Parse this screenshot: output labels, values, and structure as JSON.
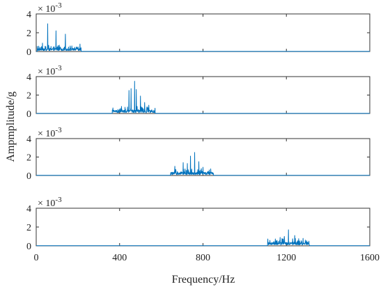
{
  "chart_data": [
    {
      "type": "line",
      "subplot": 1,
      "x_range": [
        0,
        1600
      ],
      "ylim": [
        0,
        4
      ],
      "y_ticks": [
        0,
        2,
        4
      ],
      "y_scale_label": "× 10^-3",
      "x_start": 5,
      "x_end": 215,
      "baseline": 0.3,
      "noise": 0.35,
      "peaks": [
        [
          55,
          2.95
        ],
        [
          95,
          2.2
        ],
        [
          140,
          1.85
        ],
        [
          30,
          0.9
        ],
        [
          210,
          0.8
        ]
      ]
    },
    {
      "type": "line",
      "subplot": 2,
      "x_range": [
        0,
        1600
      ],
      "ylim": [
        0,
        4
      ],
      "y_ticks": [
        0,
        2,
        4
      ],
      "y_scale_label": "× 10^-3",
      "x_start": 365,
      "x_end": 570,
      "baseline": 0.3,
      "noise": 0.5,
      "peaks": [
        [
          472,
          3.5
        ],
        [
          455,
          2.7
        ],
        [
          445,
          2.5
        ],
        [
          480,
          2.6
        ],
        [
          500,
          1.9
        ],
        [
          520,
          1.2
        ],
        [
          540,
          0.9
        ]
      ]
    },
    {
      "type": "line",
      "subplot": 3,
      "x_range": [
        0,
        1600
      ],
      "ylim": [
        0,
        4
      ],
      "y_ticks": [
        0,
        2,
        4
      ],
      "y_scale_label": "× 10^-3",
      "x_start": 645,
      "x_end": 850,
      "baseline": 0.3,
      "noise": 0.5,
      "peaks": [
        [
          760,
          2.5
        ],
        [
          740,
          2.1
        ],
        [
          705,
          1.4
        ],
        [
          725,
          1.3
        ],
        [
          780,
          1.5
        ],
        [
          800,
          0.9
        ],
        [
          665,
          1.0
        ]
      ]
    },
    {
      "type": "line",
      "subplot": 4,
      "x_range": [
        0,
        1600
      ],
      "xlim": [
        0,
        1600
      ],
      "x_ticks": [
        0,
        400,
        800,
        1200,
        1600
      ],
      "ylim": [
        0,
        4
      ],
      "y_ticks": [
        0,
        2,
        4
      ],
      "y_scale_label": "× 10^-3",
      "x_start": 1110,
      "x_end": 1310,
      "baseline": 0.3,
      "noise": 0.5,
      "peaks": [
        [
          1210,
          1.7
        ],
        [
          1190,
          1.0
        ],
        [
          1240,
          1.1
        ],
        [
          1170,
          0.9
        ],
        [
          1280,
          0.8
        ]
      ]
    }
  ],
  "labels": {
    "ylabel": "Ampmplitude/g",
    "xlabel": "Frequency/Hz",
    "exp_base": "× 10",
    "exp_power": "-3"
  },
  "colors": {
    "line": "#0072BD",
    "axes": "#333333"
  }
}
